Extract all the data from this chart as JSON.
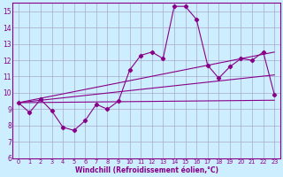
{
  "xlabel": "Windchill (Refroidissement éolien,°C)",
  "background_color": "#cceeff",
  "grid_color": "#aaaacc",
  "line_color": "#880088",
  "ylim": [
    6,
    15.5
  ],
  "xlim": [
    -0.5,
    23.5
  ],
  "yticks": [
    6,
    7,
    8,
    9,
    10,
    11,
    12,
    13,
    14,
    15
  ],
  "xticks": [
    0,
    1,
    2,
    3,
    4,
    5,
    6,
    7,
    8,
    9,
    10,
    11,
    12,
    13,
    14,
    15,
    16,
    17,
    18,
    19,
    20,
    21,
    22,
    23
  ],
  "line1_x": [
    0,
    1,
    2,
    3,
    4,
    5,
    6,
    7,
    8,
    9,
    10,
    11,
    12,
    13,
    14,
    15,
    16,
    17,
    18,
    19,
    20,
    21,
    22,
    23
  ],
  "line1_y": [
    9.4,
    8.8,
    9.6,
    8.9,
    7.9,
    7.7,
    8.3,
    9.3,
    9.0,
    9.5,
    11.4,
    12.3,
    12.5,
    12.1,
    15.3,
    15.3,
    14.5,
    11.7,
    10.9,
    11.6,
    12.1,
    12.0,
    12.5,
    9.9
  ],
  "line2_x": [
    0,
    23
  ],
  "line2_y": [
    9.4,
    12.5
  ],
  "line3_x": [
    0,
    23
  ],
  "line3_y": [
    9.4,
    11.1
  ],
  "line4_x": [
    0,
    23
  ],
  "line4_y": [
    9.4,
    9.55
  ]
}
